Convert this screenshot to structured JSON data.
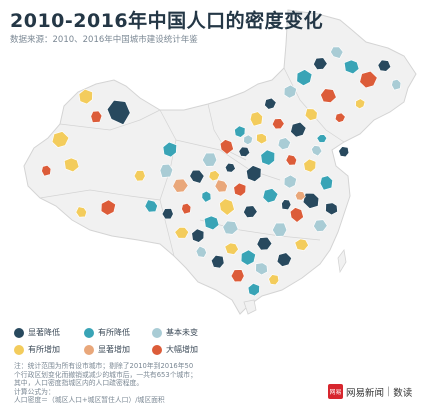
{
  "title": "2010-2016年中国人口的密度变化",
  "subtitle": "数据来源：2010、2016年中国城市建设统计年鉴",
  "colors": {
    "significant_decrease": "#28495e",
    "slight_decrease": "#39a4b6",
    "unchanged": "#a9ccd5",
    "slight_increase": "#f3cc5c",
    "significant_increase": "#e9a77a",
    "large_increase": "#dc5c39",
    "land": "#f1f1f1",
    "border": "#d4d4d4"
  },
  "legend": [
    {
      "label": "显著降低",
      "color_key": "significant_decrease"
    },
    {
      "label": "有所降低",
      "color_key": "slight_decrease"
    },
    {
      "label": "基本未变",
      "color_key": "unchanged"
    },
    {
      "label": "有所增加",
      "color_key": "slight_increase"
    },
    {
      "label": "显著增加",
      "color_key": "significant_increase"
    },
    {
      "label": "大幅增加",
      "color_key": "large_increase"
    }
  ],
  "note": {
    "line1": "注：统计范围为所有设市城市；剔除了2010年到2016年50",
    "line2": "个行政区划变化而撤销或减少的城市后，一共有653个城市；",
    "line3": "其中，人口密度指城区内的人口疏密程度。",
    "line4": "计算公式为：",
    "line5": "人口密度＝（城区人口+城区暂住人口）/城区面积"
  },
  "brand": {
    "logo_text": "网易",
    "name": "网易新闻",
    "separator": "|",
    "section": "数读"
  }
}
